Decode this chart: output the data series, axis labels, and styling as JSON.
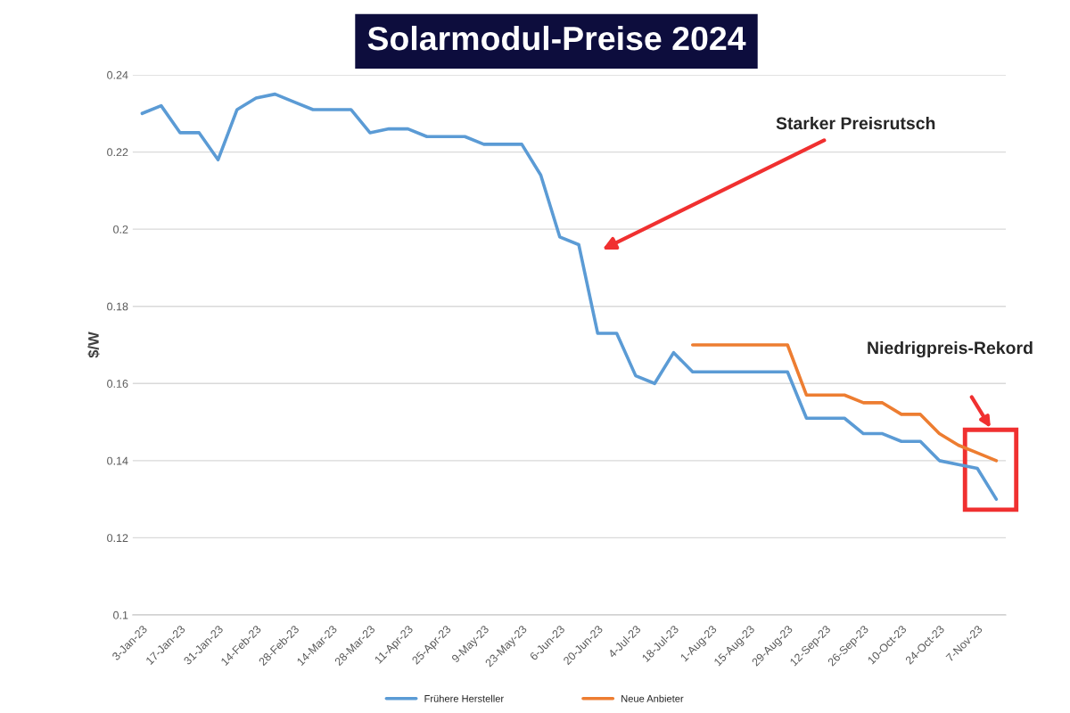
{
  "chart_data": {
    "type": "line",
    "title": "Solarmodul-Preise 2024",
    "ylabel": "$/W",
    "categories": [
      "3-Jan-23",
      null,
      "17-Jan-23",
      null,
      "31-Jan-23",
      null,
      "14-Feb-23",
      null,
      "28-Feb-23",
      null,
      "14-Mar-23",
      null,
      "28-Mar-23",
      null,
      "11-Apr-23",
      null,
      "25-Apr-23",
      null,
      "9-May-23",
      null,
      "23-May-23",
      null,
      "6-Jun-23",
      null,
      "20-Jun-23",
      null,
      "4-Jul-23",
      null,
      "18-Jul-23",
      null,
      "1-Aug-23",
      null,
      "15-Aug-23",
      null,
      "29-Aug-23",
      null,
      "12-Sep-23",
      null,
      "26-Sep-23",
      null,
      "10-Oct-23",
      null,
      "24-Oct-23",
      null,
      "7-Nov-23",
      null
    ],
    "series": [
      {
        "name": "Frühere Hersteller",
        "color": "#5b9bd5",
        "values": [
          0.23,
          0.232,
          0.225,
          0.225,
          0.218,
          0.231,
          0.234,
          0.235,
          0.233,
          0.231,
          0.231,
          0.231,
          0.225,
          0.226,
          0.226,
          0.224,
          0.224,
          0.224,
          0.222,
          0.222,
          0.222,
          0.214,
          0.198,
          0.196,
          0.173,
          0.173,
          0.162,
          0.16,
          0.168,
          0.163,
          0.163,
          0.163,
          0.163,
          0.163,
          0.163,
          0.151,
          0.151,
          0.151,
          0.147,
          0.147,
          0.145,
          0.145,
          0.14,
          0.139,
          0.138,
          0.13
        ]
      },
      {
        "name": "Neue Anbieter",
        "color": "#ed7d31",
        "values": [
          null,
          null,
          null,
          null,
          null,
          null,
          null,
          null,
          null,
          null,
          null,
          null,
          null,
          null,
          null,
          null,
          null,
          null,
          null,
          null,
          null,
          null,
          null,
          null,
          null,
          null,
          null,
          null,
          null,
          0.17,
          0.17,
          0.17,
          0.17,
          0.17,
          0.17,
          0.157,
          0.157,
          0.157,
          0.155,
          0.155,
          0.152,
          0.152,
          0.147,
          0.144,
          0.142,
          0.14
        ]
      }
    ],
    "ylim": [
      0.1,
      0.24
    ],
    "yticks": [
      0.1,
      0.12,
      0.14,
      0.16,
      0.18,
      0.2,
      0.22,
      0.24
    ],
    "grid": "y",
    "legend": "bottom",
    "marker": "none",
    "line_style": "solid",
    "annotations": [
      "Starker Preisrutsch",
      "Niedrigpreis-Rekord"
    ]
  }
}
